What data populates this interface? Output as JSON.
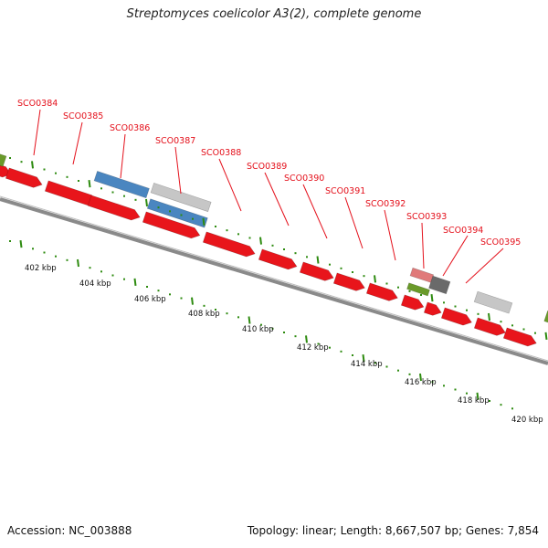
{
  "title": "Streptomyces coelicolor A3(2), complete genome",
  "footer": {
    "accession": "Accession: NC_003888",
    "stats": "Topology: linear; Length: 8,667,507 bp; Genes: 7,854"
  },
  "colors": {
    "gene_red": "#e8151b",
    "gene_blue": "#4a86c0",
    "gene_gray": "#c6c6c6",
    "gene_dark_gray": "#6a6a6a",
    "gene_green": "#6a9a2a",
    "gene_pink": "#e07a7a",
    "tick_green": "#2e8b10",
    "backbone": "#8a8a8a",
    "label_red": "#e4101b"
  },
  "gene_labels": [
    "SCO0384",
    "SCO0385",
    "SCO0386",
    "SCO0387",
    "SCO0388",
    "SCO0389",
    "SCO0390",
    "SCO0391",
    "SCO0392",
    "SCO0393",
    "SCO0394",
    "SCO0395"
  ],
  "kbp_labels": [
    "402 kbp",
    "404 kbp",
    "406 kbp",
    "408 kbp",
    "410 kbp",
    "412 kbp",
    "414 kbp",
    "416 kbp",
    "418 kbp",
    "420 kbp"
  ]
}
